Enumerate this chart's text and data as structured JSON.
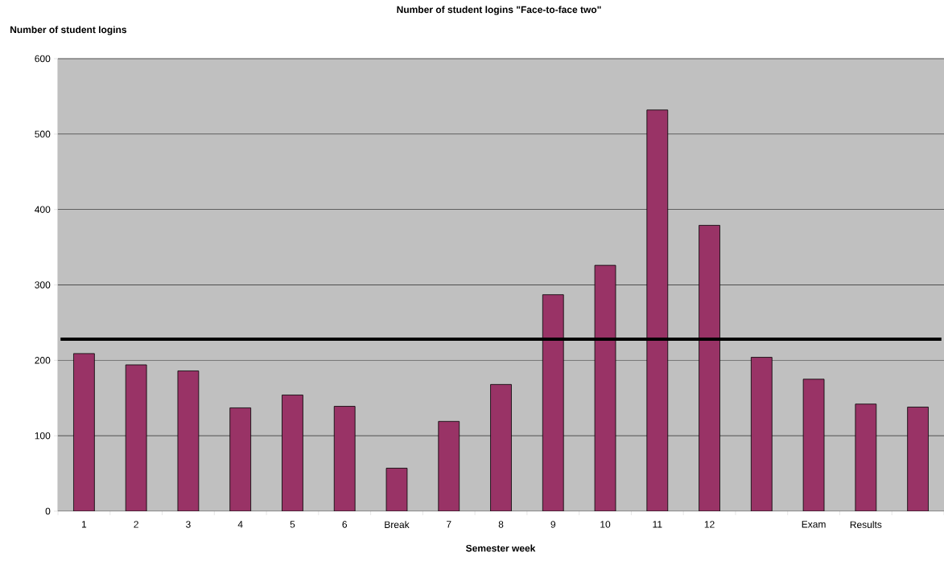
{
  "chart_data": {
    "type": "bar",
    "title": "Number of student logins \"Face-to-face two\"",
    "xlabel": "Semester week",
    "ylabel": "Number of student logins",
    "categories": [
      "1",
      "2",
      "3",
      "4",
      "5",
      "6",
      "Break",
      "7",
      "8",
      "9",
      "10",
      "11",
      "12",
      null,
      "Exam",
      "Results",
      null
    ],
    "values": [
      209,
      194,
      186,
      137,
      154,
      139,
      57,
      119,
      168,
      287,
      326,
      532,
      379,
      204,
      175,
      142,
      138
    ],
    "color": "#993366",
    "ylim": [
      0,
      600
    ],
    "yticks": [
      0,
      100,
      200,
      300,
      400,
      500,
      600
    ],
    "grid": "y",
    "ref_lines": [
      {
        "axis": "y",
        "value": 228,
        "color": "#000000"
      }
    ]
  }
}
